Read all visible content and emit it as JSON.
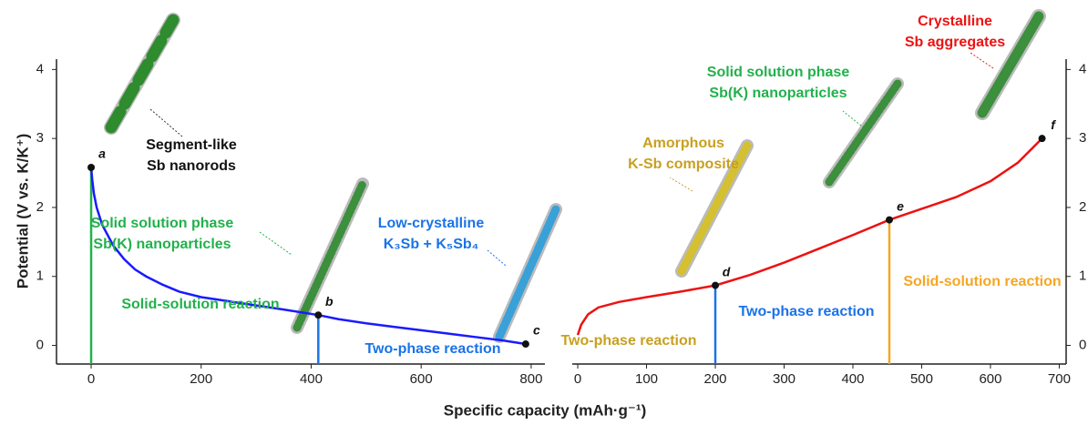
{
  "shared": {
    "x_label": "Specific capacity (mAh·g⁻¹)",
    "y_label": "Potential (V vs. K/K⁺)"
  },
  "chart_data": [
    {
      "type": "line",
      "xlim": [
        -63,
        825
      ],
      "xticks": [
        0,
        200,
        400,
        600,
        800
      ],
      "ylim": [
        -0.27,
        4.15
      ],
      "yticks": [
        0,
        1,
        2,
        3,
        4
      ],
      "series": [
        {
          "color": "#1a1aff",
          "x": [
            0,
            2,
            5,
            10,
            20,
            40,
            60,
            80,
            100,
            130,
            160,
            200,
            250,
            300,
            350,
            413,
            450,
            500,
            550,
            600,
            650,
            700,
            750,
            790
          ],
          "values": [
            2.58,
            2.4,
            2.2,
            2.0,
            1.75,
            1.45,
            1.25,
            1.1,
            1.0,
            0.88,
            0.78,
            0.7,
            0.64,
            0.58,
            0.52,
            0.44,
            0.38,
            0.32,
            0.27,
            0.22,
            0.17,
            0.12,
            0.07,
            0.02
          ]
        }
      ],
      "vlines": [
        {
          "x": 0,
          "y": 2.58,
          "color": "#22b14c"
        },
        {
          "x": 413,
          "y": 0.44,
          "color": "#1a73e8"
        }
      ],
      "points": [
        {
          "label": "a",
          "x": 0,
          "y": 2.58
        },
        {
          "label": "b",
          "x": 413,
          "y": 0.44
        },
        {
          "label": "c",
          "x": 790,
          "y": 0.02
        }
      ],
      "annotations": [
        {
          "lines": [
            "Segment-like",
            "Sb nanorods"
          ],
          "color": "#111111"
        },
        {
          "lines": [
            "Solid solution phase",
            "Sb(K) nanoparticles"
          ],
          "color": "#22b14c"
        },
        {
          "lines": [
            "Low-crystalline",
            "K₃Sb + K₅Sb₄"
          ],
          "color": "#1a73e8"
        },
        {
          "lines": [
            "Solid-solution reaction"
          ],
          "color": "#22b14c"
        },
        {
          "lines": [
            "Two-phase reaction"
          ],
          "color": "#1a73e8"
        }
      ]
    },
    {
      "type": "line",
      "xlim": [
        -8,
        710
      ],
      "xticks": [
        0,
        100,
        200,
        300,
        400,
        500,
        600,
        700
      ],
      "ylim": [
        -0.27,
        4.15
      ],
      "yticks": [
        0,
        1,
        2,
        3,
        4
      ],
      "series": [
        {
          "color": "#ee1111",
          "x": [
            0,
            5,
            15,
            30,
            60,
            100,
            150,
            200,
            250,
            300,
            350,
            400,
            453,
            500,
            550,
            600,
            640,
            675
          ],
          "values": [
            0.15,
            0.3,
            0.45,
            0.55,
            0.63,
            0.7,
            0.78,
            0.87,
            1.02,
            1.2,
            1.4,
            1.6,
            1.82,
            1.98,
            2.15,
            2.38,
            2.65,
            3.0
          ]
        }
      ],
      "vlines": [
        {
          "x": 200,
          "y": 0.87,
          "color": "#1a73e8"
        },
        {
          "x": 453,
          "y": 1.82,
          "color": "#f5a623"
        }
      ],
      "points": [
        {
          "label": "d",
          "x": 200,
          "y": 0.87
        },
        {
          "label": "e",
          "x": 453,
          "y": 1.82
        },
        {
          "label": "f",
          "x": 675,
          "y": 3.0
        }
      ],
      "annotations": [
        {
          "lines": [
            "Amorphous",
            "K-Sb composite"
          ],
          "color": "#c8a020"
        },
        {
          "lines": [
            "Solid solution phase",
            "Sb(K) nanoparticles"
          ],
          "color": "#22b14c"
        },
        {
          "lines": [
            "Crystalline",
            "Sb aggregates"
          ],
          "color": "#ee1111"
        },
        {
          "lines": [
            "Two-phase reaction"
          ],
          "color": "#c8a020"
        },
        {
          "lines": [
            "Two-phase reaction"
          ],
          "color": "#1a73e8"
        },
        {
          "lines": [
            "Solid-solution reaction"
          ],
          "color": "#f5a623"
        }
      ]
    }
  ]
}
